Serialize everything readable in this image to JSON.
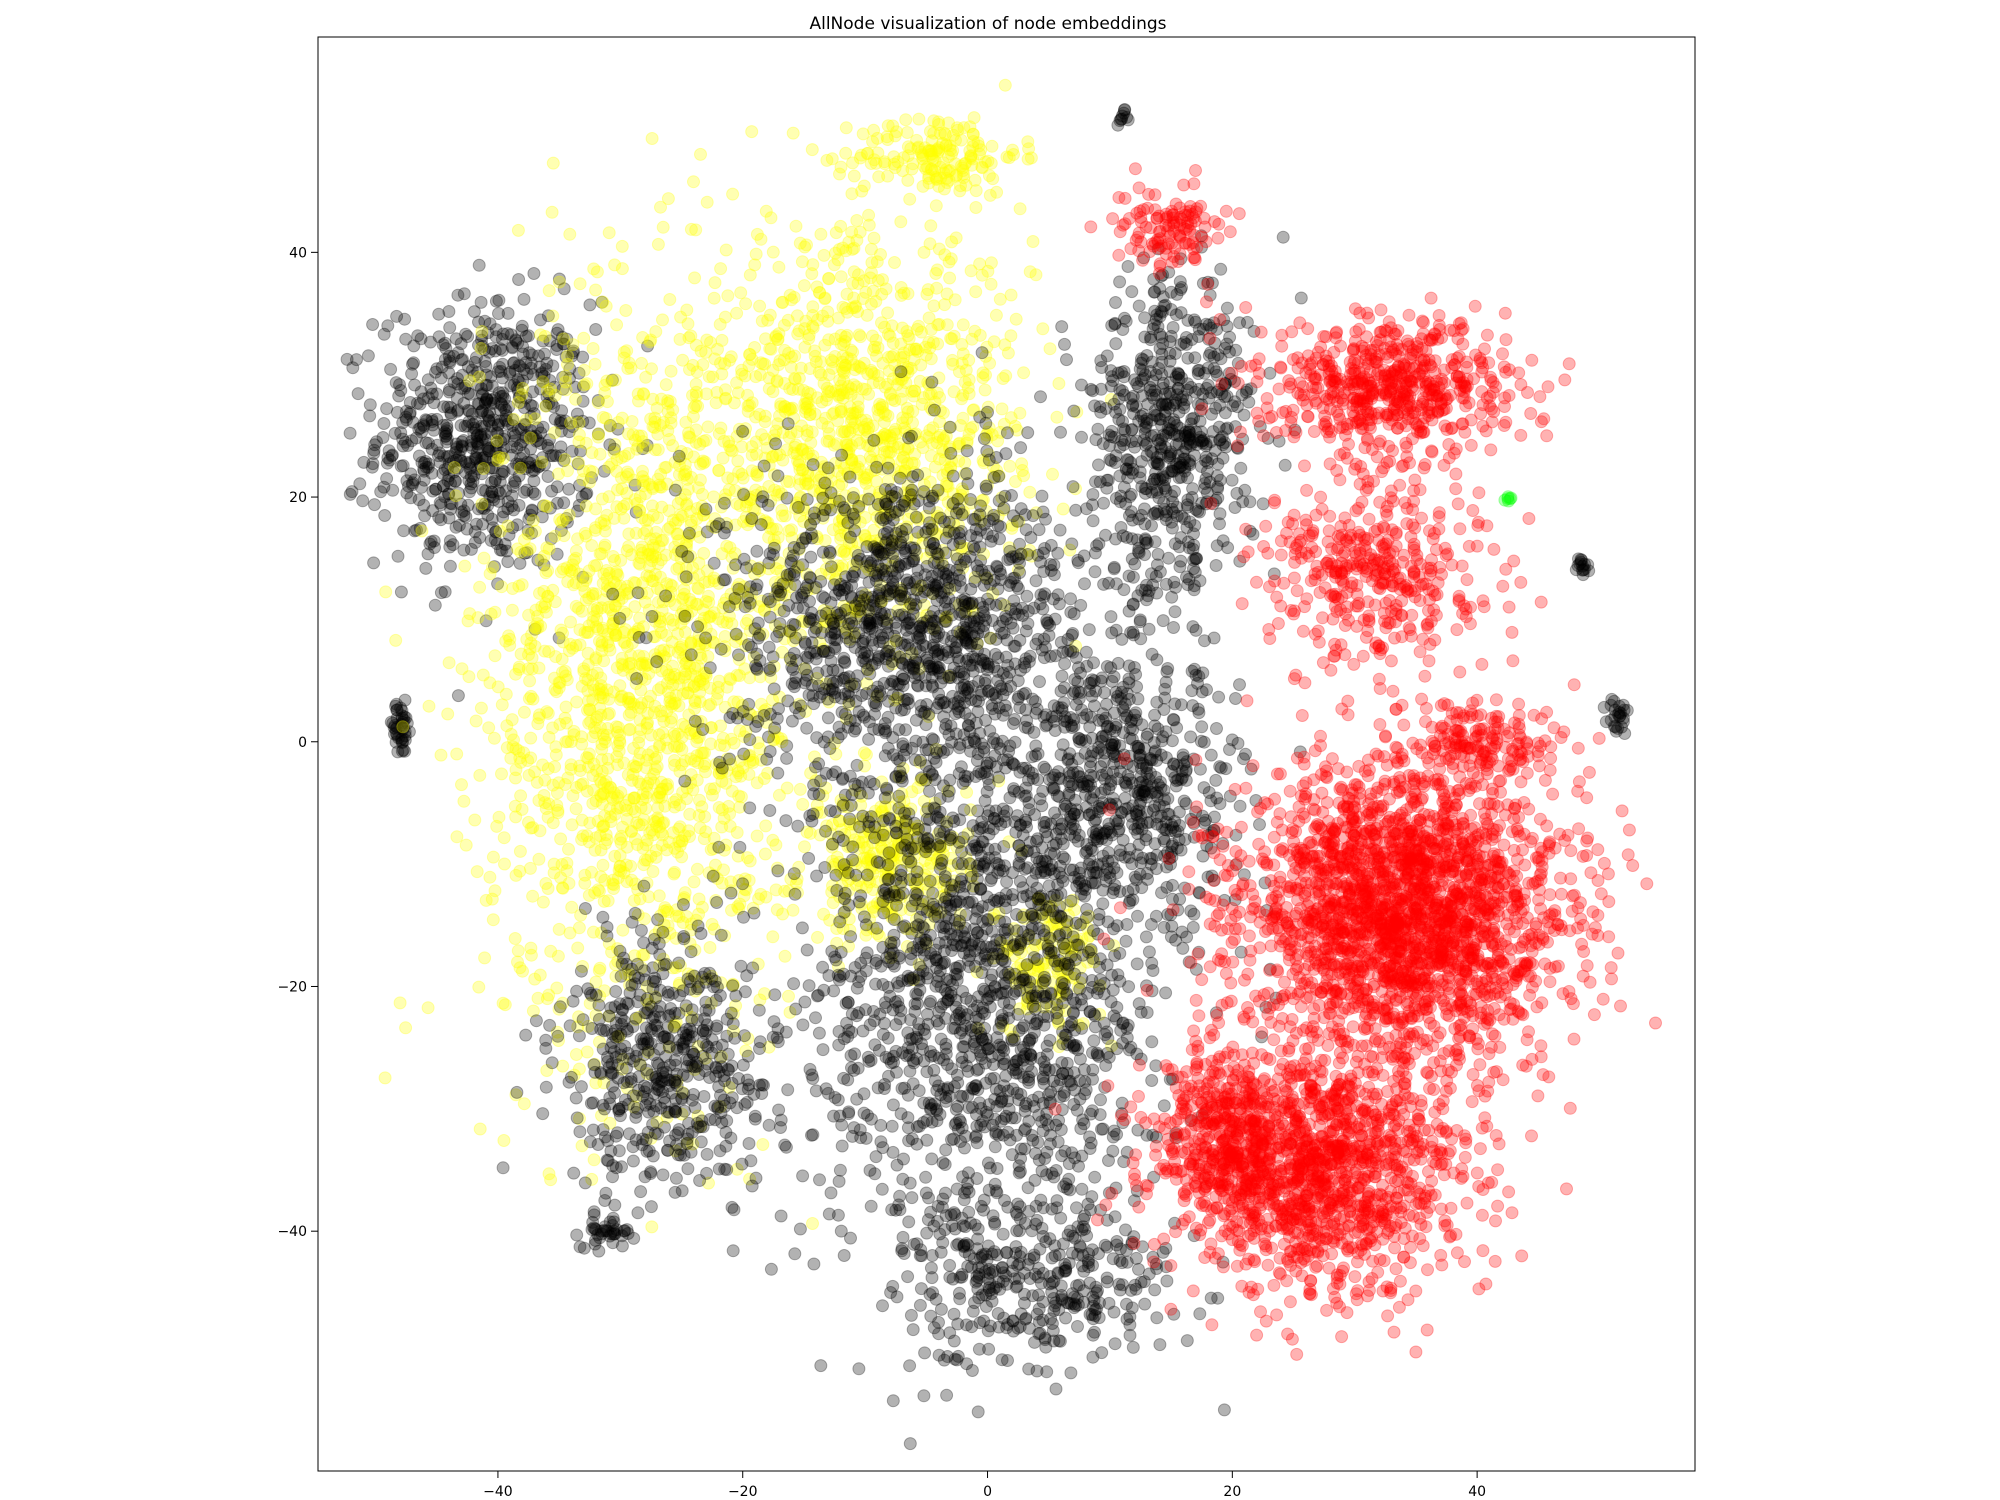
{
  "chart_data": {
    "type": "scatter",
    "title": "AllNode visualization of node embeddings",
    "xlabel": "",
    "ylabel": "",
    "xlim": [
      -54.7,
      57.8
    ],
    "ylim": [
      -59.6,
      57.6
    ],
    "x_ticks": [
      -40,
      -20,
      0,
      20,
      40
    ],
    "y_ticks": [
      40,
      20,
      0,
      -20,
      -40
    ],
    "x_tick_labels": [
      "−40",
      "−20",
      "0",
      "20",
      "40"
    ],
    "y_tick_labels": [
      "40",
      "20",
      "0",
      "−20",
      "−40"
    ],
    "grid": false,
    "legend": "none",
    "marker_alpha": 0.3,
    "colors": {
      "black": "#000000",
      "yellow": "#ffff00",
      "red": "#ff0000",
      "green": "#00ff00",
      "frame": "#000000",
      "background": "#ffffff"
    },
    "clusters": [
      {
        "color": "black",
        "cx": -41,
        "cy": 25,
        "rx": 8,
        "ry": 10,
        "n": 700
      },
      {
        "color": "black",
        "cx": -48,
        "cy": 1,
        "rx": 1,
        "ry": 2,
        "n": 40
      },
      {
        "color": "black",
        "cx": -31,
        "cy": -40,
        "rx": 2,
        "ry": 1.2,
        "n": 40
      },
      {
        "color": "black",
        "cx": 11,
        "cy": 51,
        "rx": 0.4,
        "ry": 0.5,
        "n": 10
      },
      {
        "color": "black",
        "cx": 48.5,
        "cy": 14,
        "rx": 0.5,
        "ry": 1.2,
        "n": 15
      },
      {
        "color": "black",
        "cx": 51.5,
        "cy": 2,
        "rx": 0.8,
        "ry": 1.5,
        "n": 25
      },
      {
        "color": "yellow",
        "cx": -4,
        "cy": 48,
        "rx": 6,
        "ry": 3,
        "n": 160
      },
      {
        "color": "yellow",
        "cx": -28,
        "cy": 5,
        "rx": 12,
        "ry": 28,
        "n": 1700
      },
      {
        "color": "yellow",
        "cx": -10,
        "cy": 25,
        "rx": 12,
        "ry": 15,
        "n": 1100
      },
      {
        "color": "yellow",
        "cx": -8,
        "cy": -10,
        "rx": 6,
        "ry": 6,
        "n": 300
      },
      {
        "color": "yellow",
        "cx": 5,
        "cy": -18,
        "rx": 4,
        "ry": 5,
        "n": 150
      },
      {
        "color": "black",
        "cx": -6,
        "cy": 10,
        "rx": 14,
        "ry": 12,
        "n": 1200
      },
      {
        "color": "black",
        "cx": 0,
        "cy": -20,
        "rx": 13,
        "ry": 22,
        "n": 1600
      },
      {
        "color": "black",
        "cx": -26,
        "cy": -26,
        "rx": 8,
        "ry": 10,
        "n": 500
      },
      {
        "color": "black",
        "cx": 15,
        "cy": 25,
        "rx": 6,
        "ry": 12,
        "n": 600
      },
      {
        "color": "black",
        "cx": 12,
        "cy": -5,
        "rx": 8,
        "ry": 10,
        "n": 500
      },
      {
        "color": "black",
        "cx": 4,
        "cy": -44,
        "rx": 10,
        "ry": 6,
        "n": 300
      },
      {
        "color": "red",
        "cx": 33,
        "cy": 29,
        "rx": 9,
        "ry": 5,
        "n": 600
      },
      {
        "color": "red",
        "cx": 32,
        "cy": 14,
        "rx": 8,
        "ry": 7,
        "n": 400
      },
      {
        "color": "red",
        "cx": 15,
        "cy": 42,
        "rx": 4,
        "ry": 3,
        "n": 120
      },
      {
        "color": "red",
        "cx": 34,
        "cy": -14,
        "rx": 12,
        "ry": 11,
        "n": 2400
      },
      {
        "color": "red",
        "cx": 27,
        "cy": -35,
        "rx": 11,
        "ry": 9,
        "n": 1400
      },
      {
        "color": "red",
        "cx": 19,
        "cy": -32,
        "rx": 4,
        "ry": 5,
        "n": 250
      },
      {
        "color": "red",
        "cx": 40,
        "cy": 0,
        "rx": 6,
        "ry": 3,
        "n": 150
      },
      {
        "color": "green",
        "cx": 42.5,
        "cy": 20,
        "rx": 0.3,
        "ry": 0.3,
        "n": 6
      }
    ]
  }
}
